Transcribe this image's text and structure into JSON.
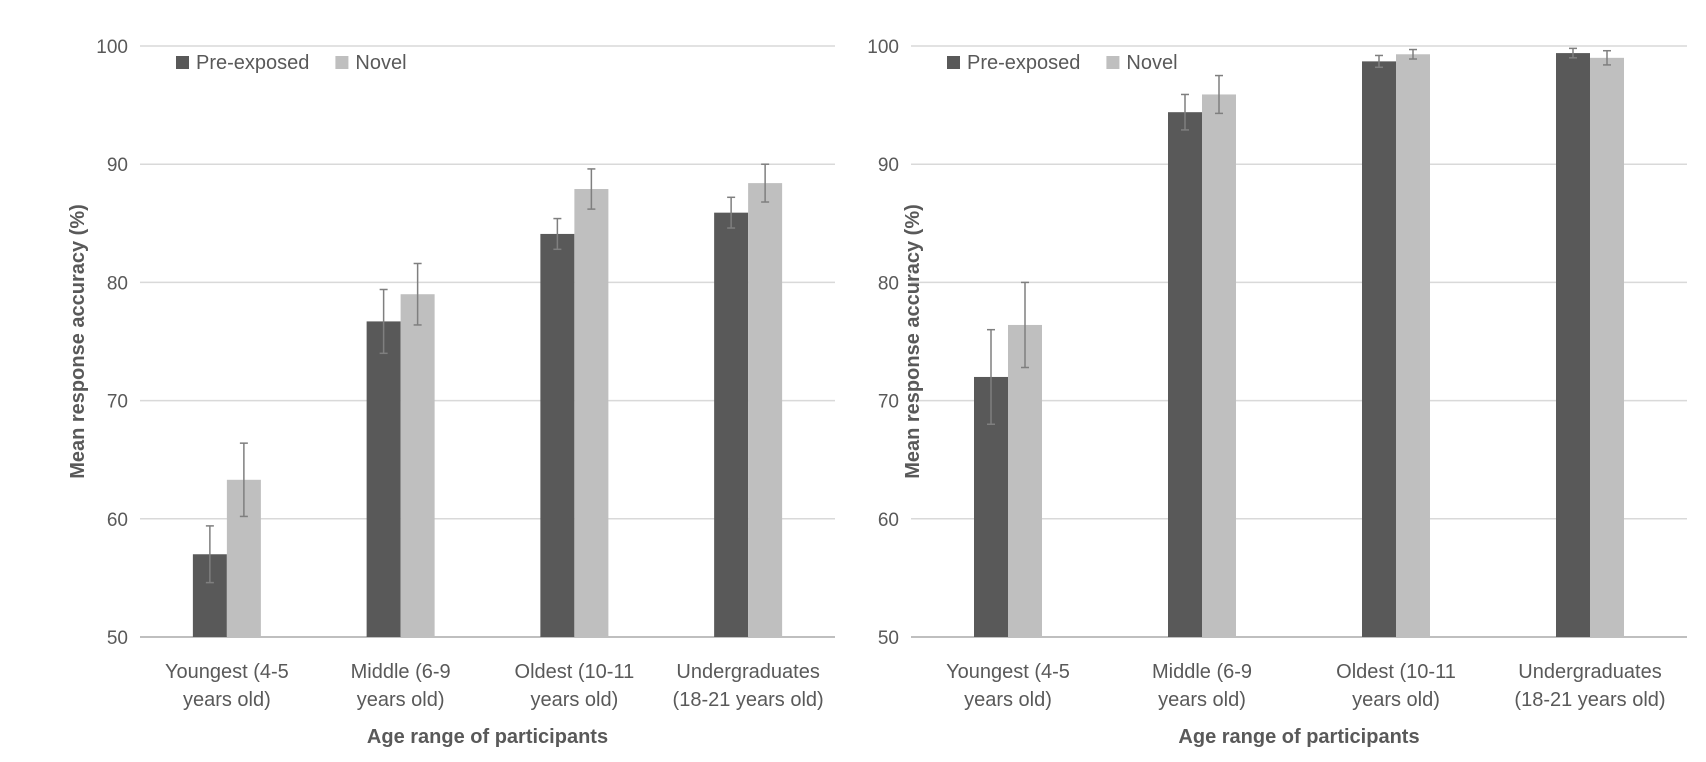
{
  "chart_data": [
    {
      "type": "bar",
      "title": "",
      "xlabel": "Age range of participants",
      "ylabel": "Mean response accuracy (%)",
      "ylim": [
        50,
        100
      ],
      "yticks": [
        50,
        60,
        70,
        80,
        90,
        100
      ],
      "grid": true,
      "legend": "top-left",
      "categories": [
        [
          "Youngest (4-5",
          "years old)"
        ],
        [
          "Middle (6-9",
          "years old)"
        ],
        [
          "Oldest (10-11",
          "years old)"
        ],
        [
          "Undergraduates",
          "(18-21 years old)"
        ]
      ],
      "series": [
        {
          "name": "Pre-exposed",
          "color": "#595959",
          "values": [
            57.0,
            76.7,
            84.1,
            85.9
          ],
          "error": [
            2.4,
            2.7,
            1.3,
            1.3
          ]
        },
        {
          "name": "Novel",
          "color": "#bfbfbf",
          "values": [
            63.3,
            79.0,
            87.9,
            88.4
          ],
          "error": [
            3.1,
            2.6,
            1.7,
            1.6
          ]
        }
      ]
    },
    {
      "type": "bar",
      "title": "",
      "xlabel": "Age range of participants",
      "ylabel": "Mean response accuracy (%)",
      "ylim": [
        50,
        100
      ],
      "yticks": [
        50,
        60,
        70,
        80,
        90,
        100
      ],
      "grid": true,
      "legend": "top-left",
      "categories": [
        [
          "Youngest (4-5",
          "years old)"
        ],
        [
          "Middle (6-9",
          "years old)"
        ],
        [
          "Oldest (10-11",
          "years old)"
        ],
        [
          "Undergraduates",
          "(18-21 years old)"
        ]
      ],
      "series": [
        {
          "name": "Pre-exposed",
          "color": "#595959",
          "values": [
            72.0,
            94.4,
            98.7,
            99.4
          ],
          "error": [
            4.0,
            1.5,
            0.5,
            0.4
          ]
        },
        {
          "name": "Novel",
          "color": "#bfbfbf",
          "values": [
            76.4,
            95.9,
            99.3,
            99.0
          ],
          "error": [
            3.6,
            1.6,
            0.4,
            0.6
          ]
        }
      ]
    }
  ]
}
